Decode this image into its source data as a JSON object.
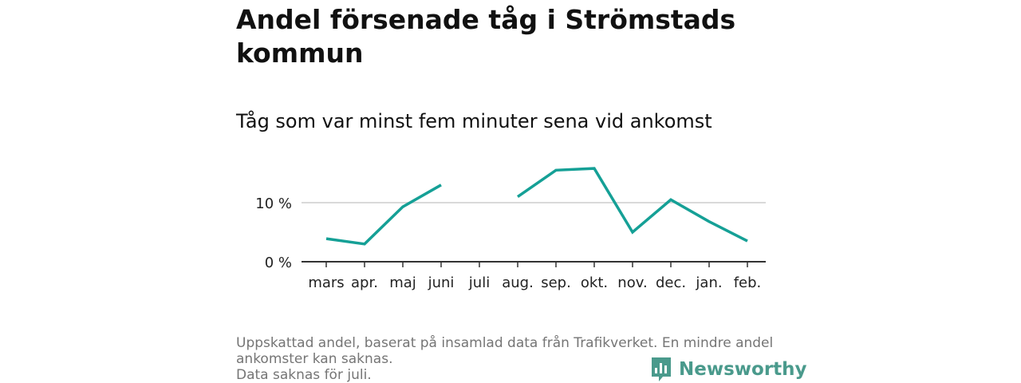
{
  "title": "Andel försenade tåg i Strömstads kommun",
  "subtitle": "Tåg som var minst fem minuter sena vid ankomst",
  "footnote": {
    "line1": "Uppskattad andel, baserat på insamlad data från Trafikverket. En mindre andel ankomster kan saknas.",
    "line2": "Data saknas för juli."
  },
  "brand": {
    "name": "Newsworthy",
    "icon": "newsworthy-logo-icon"
  },
  "colors": {
    "line": "#15a096",
    "grid": "#d9d9d9",
    "axis": "#333333",
    "brand": "#4a9a8c"
  },
  "chart_data": {
    "type": "line",
    "title": "Andel försenade tåg i Strömstads kommun",
    "subtitle": "Tåg som var minst fem minuter sena vid ankomst",
    "categories": [
      "mars",
      "apr.",
      "maj",
      "juni",
      "juli",
      "aug.",
      "sep.",
      "okt.",
      "nov.",
      "dec.",
      "jan.",
      "feb."
    ],
    "series": [
      {
        "name": "Andel försenade",
        "values": [
          3.9,
          3.0,
          9.3,
          13.0,
          null,
          11.0,
          15.5,
          15.8,
          5.0,
          10.5,
          6.8,
          3.5
        ]
      }
    ],
    "yticks": [
      0,
      10
    ],
    "ytick_labels": [
      "0 %",
      "10 %"
    ],
    "ylim": [
      0,
      19
    ],
    "xlabel": "",
    "ylabel": "",
    "grid": true
  }
}
